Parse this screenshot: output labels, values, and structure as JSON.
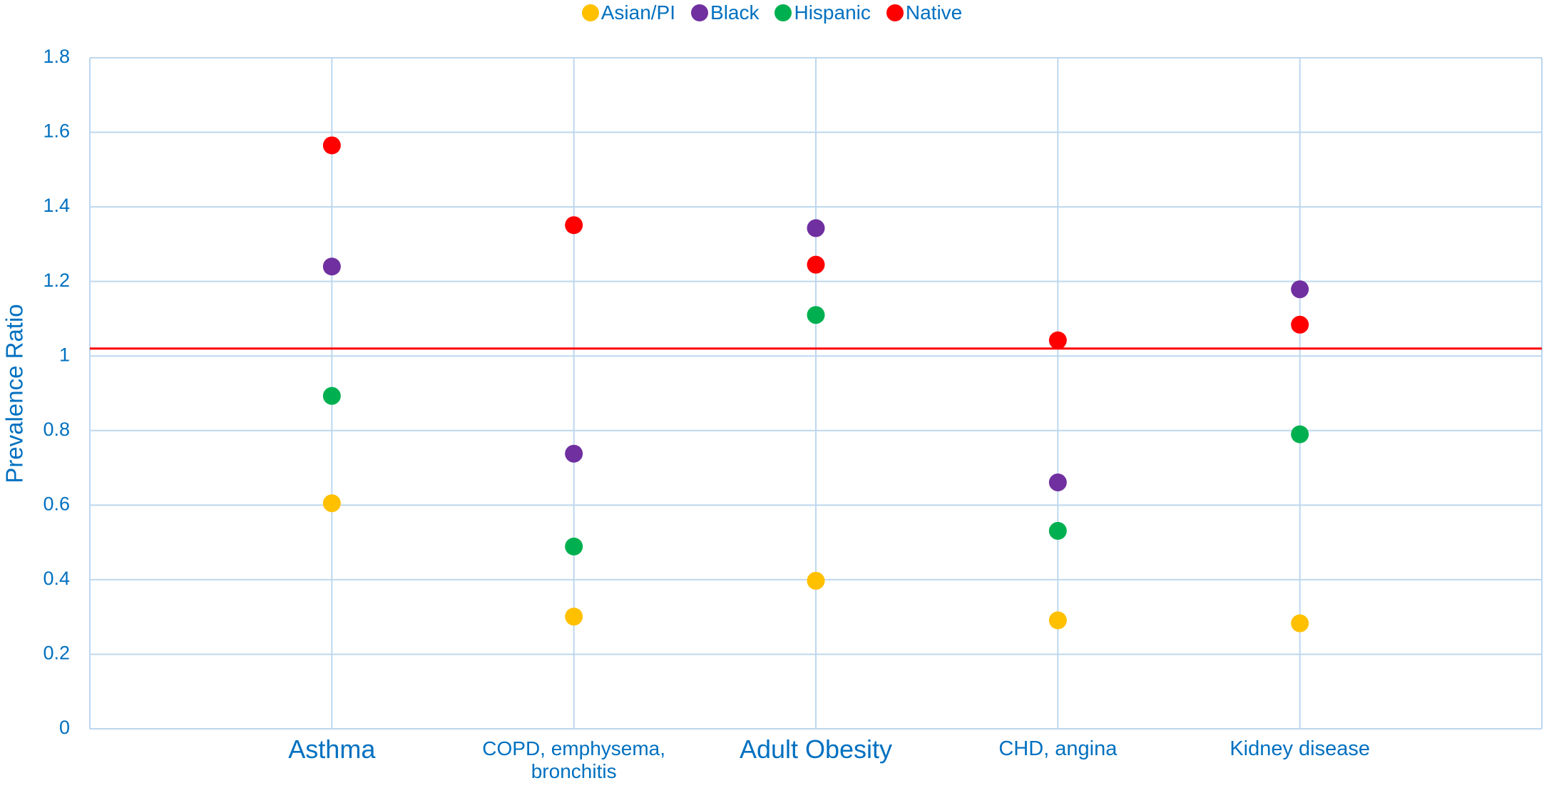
{
  "chart_data": {
    "type": "dot",
    "y_label": "Prevalence Ratio",
    "categories": [
      "Asthma",
      "COPD, emphysema, bronchitis",
      "Adult Obesity",
      "CHD, angina",
      "Kidney disease"
    ],
    "series": [
      {
        "name": "Asian/PI",
        "color": "#FFC000",
        "values": [
          0.605,
          0.301,
          0.397,
          0.291,
          0.283
        ]
      },
      {
        "name": "Black",
        "color": "#7030A0",
        "values": [
          1.24,
          0.738,
          1.343,
          0.661,
          1.179
        ]
      },
      {
        "name": "Hispanic",
        "color": "#00B050",
        "values": [
          0.893,
          0.489,
          1.11,
          0.531,
          0.79
        ]
      },
      {
        "name": "Native",
        "color": "#FF0000",
        "values": [
          1.565,
          1.351,
          1.245,
          1.042,
          1.084
        ]
      }
    ],
    "reference_line": {
      "value": 1.02,
      "color": "#FF0000"
    },
    "ylim": [
      0,
      1.8
    ],
    "yticks": [
      0,
      0.2,
      0.4,
      0.6,
      0.8,
      1,
      1.2,
      1.4,
      1.6,
      1.8
    ],
    "grid": true,
    "legend": "top"
  }
}
